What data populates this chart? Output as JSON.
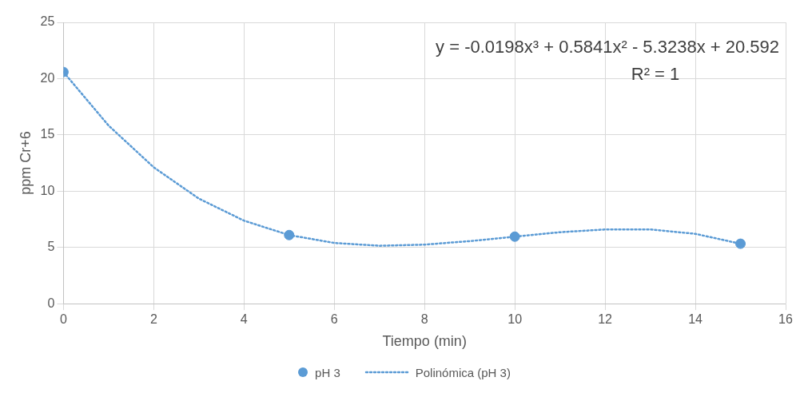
{
  "chart_data": {
    "type": "scatter",
    "xlabel": "Tiempo (min)",
    "ylabel": "ppm Cr+6",
    "xlim": [
      0,
      16
    ],
    "xticks": [
      0,
      2,
      4,
      6,
      8,
      10,
      12,
      14,
      16
    ],
    "ylim": [
      0,
      25
    ],
    "yticks": [
      0,
      5,
      10,
      15,
      20,
      25
    ],
    "grid": true,
    "legend": "bottom",
    "marker": "circle",
    "series": [
      {
        "name": "pH 3",
        "color": "#5b9bd5",
        "x": [
          0,
          5,
          10,
          15
        ],
        "values": [
          20.59,
          6.1,
          5.96,
          5.33
        ]
      },
      {
        "name": "Polinómica (pH 3)",
        "type": "line",
        "line_style": "dotted",
        "marker": "none",
        "color": "#5b9bd5",
        "x": [
          0,
          1,
          2,
          3,
          4,
          5,
          6,
          7,
          8,
          9,
          10,
          11,
          12,
          13,
          14,
          15
        ],
        "values": [
          20.59,
          15.83,
          12.12,
          9.34,
          7.38,
          6.1,
          5.4,
          5.15,
          5.25,
          5.56,
          5.96,
          6.35,
          6.6,
          6.6,
          6.21,
          5.33
        ]
      }
    ],
    "annotations": [
      "y = -0.0198x³ + 0.5841x² - 5.3238x + 20.592",
      "R² = 1"
    ]
  }
}
